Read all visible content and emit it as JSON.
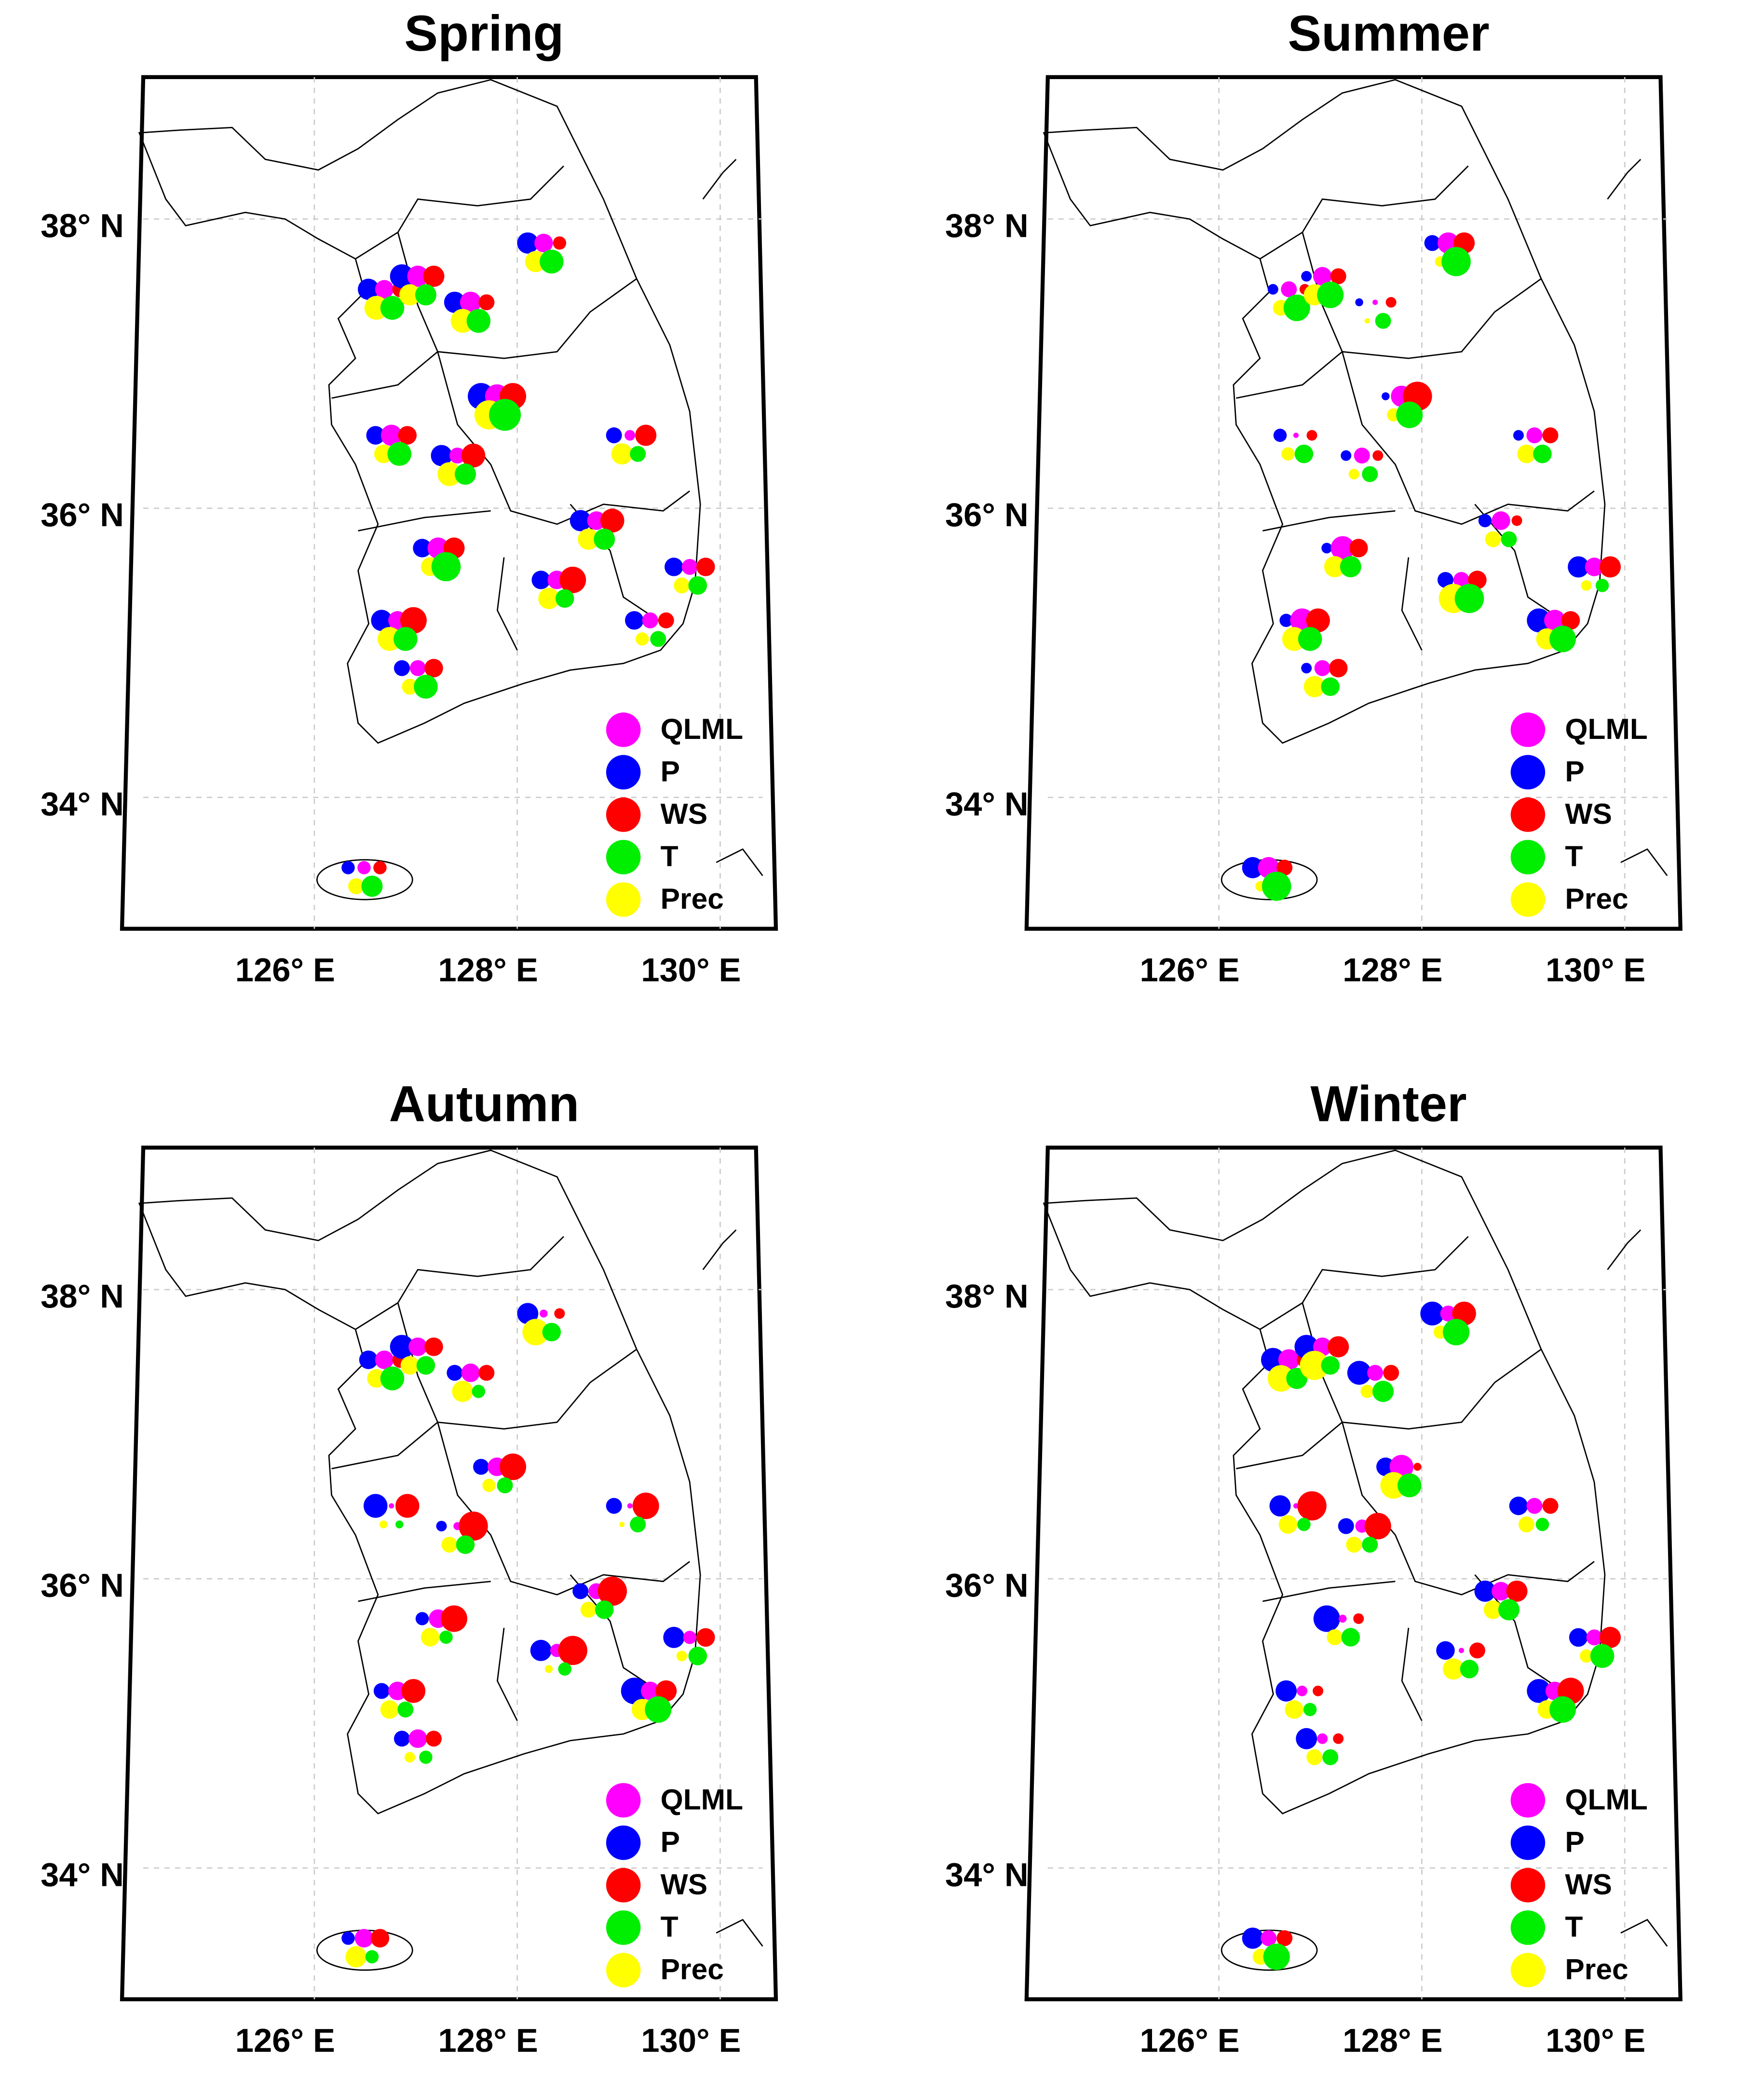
{
  "panels": [
    {
      "title": "Spring",
      "sizes": {
        "QLML": [
          7,
          8,
          8,
          7,
          9,
          8,
          6,
          4,
          7,
          6,
          7,
          8,
          7,
          6,
          6,
          5
        ],
        "P": [
          8,
          9,
          8,
          8,
          10,
          7,
          8,
          6,
          8,
          7,
          7,
          7,
          8,
          6,
          7,
          5
        ],
        "WS": [
          6,
          8,
          6,
          5,
          10,
          7,
          9,
          8,
          9,
          7,
          10,
          8,
          10,
          7,
          6,
          5
        ],
        "T": [
          9,
          8,
          9,
          9,
          12,
          9,
          8,
          6,
          8,
          7,
          7,
          11,
          9,
          9,
          6,
          8
        ],
        "Prec": [
          9,
          8,
          9,
          8,
          11,
          7,
          9,
          8,
          8,
          6,
          8,
          7,
          9,
          6,
          5,
          6
        ]
      }
    },
    {
      "title": "Summer",
      "sizes": {
        "QLML": [
          6,
          7,
          2,
          8,
          8,
          2,
          6,
          6,
          7,
          7,
          6,
          9,
          9,
          6,
          8,
          8
        ],
        "P": [
          4,
          4,
          3,
          6,
          3,
          5,
          4,
          4,
          5,
          8,
          6,
          4,
          5,
          4,
          9,
          8
        ],
        "WS": [
          4,
          6,
          4,
          8,
          11,
          4,
          4,
          6,
          4,
          8,
          7,
          7,
          9,
          7,
          7,
          6
        ],
        "T": [
          10,
          10,
          6,
          11,
          10,
          7,
          6,
          7,
          6,
          5,
          11,
          8,
          9,
          7,
          10,
          11
        ],
        "Prec": [
          6,
          8,
          2,
          4,
          5,
          5,
          4,
          7,
          6,
          4,
          11,
          8,
          9,
          8,
          8,
          4
        ]
      }
    },
    {
      "title": "Autumn",
      "sizes": {
        "QLML": [
          7,
          7,
          7,
          3,
          7,
          2,
          3,
          2,
          6,
          5,
          5,
          7,
          7,
          7,
          7,
          7
        ],
        "P": [
          7,
          9,
          6,
          8,
          6,
          9,
          4,
          6,
          6,
          8,
          8,
          5,
          6,
          6,
          10,
          5
        ],
        "WS": [
          6,
          7,
          6,
          4,
          10,
          9,
          11,
          10,
          11,
          7,
          11,
          10,
          9,
          6,
          8,
          7
        ],
        "T": [
          9,
          7,
          5,
          7,
          6,
          3,
          7,
          6,
          7,
          7,
          5,
          5,
          6,
          5,
          10,
          5
        ],
        "Prec": [
          7,
          7,
          8,
          10,
          5,
          3,
          6,
          2,
          6,
          4,
          3,
          7,
          7,
          4,
          8,
          8
        ]
      }
    },
    {
      "title": "Winter",
      "sizes": {
        "QLML": [
          8,
          7,
          6,
          6,
          9,
          2,
          5,
          6,
          7,
          6,
          2,
          3,
          4,
          4,
          7,
          6
        ],
        "P": [
          9,
          9,
          9,
          9,
          7,
          8,
          6,
          7,
          8,
          7,
          7,
          10,
          8,
          8,
          9,
          8
        ],
        "WS": [
          6,
          8,
          6,
          9,
          3,
          11,
          10,
          6,
          8,
          8,
          6,
          4,
          4,
          4,
          10,
          6
        ],
        "T": [
          8,
          7,
          8,
          10,
          9,
          5,
          6,
          5,
          8,
          9,
          7,
          7,
          5,
          6,
          10,
          10
        ],
        "Prec": [
          10,
          11,
          5,
          5,
          10,
          7,
          6,
          6,
          7,
          5,
          8,
          6,
          7,
          6,
          7,
          6
        ]
      }
    }
  ],
  "stations": [
    {
      "lon": 126.69,
      "lat": 37.45
    },
    {
      "lon": 127.02,
      "lat": 37.54
    },
    {
      "lon": 127.54,
      "lat": 37.36
    },
    {
      "lon": 128.26,
      "lat": 37.77
    },
    {
      "lon": 127.8,
      "lat": 36.71
    },
    {
      "lon": 126.76,
      "lat": 36.44
    },
    {
      "lon": 127.41,
      "lat": 36.3
    },
    {
      "lon": 129.11,
      "lat": 36.44
    },
    {
      "lon": 128.78,
      "lat": 35.85
    },
    {
      "lon": 129.7,
      "lat": 35.53
    },
    {
      "lon": 128.39,
      "lat": 35.44
    },
    {
      "lon": 127.22,
      "lat": 35.66
    },
    {
      "lon": 126.82,
      "lat": 35.16
    },
    {
      "lon": 127.02,
      "lat": 34.83
    },
    {
      "lon": 129.31,
      "lat": 35.16
    },
    {
      "lon": 126.49,
      "lat": 33.45
    }
  ],
  "legend": [
    {
      "name": "QLML",
      "color": "#ff00ff"
    },
    {
      "name": "P",
      "color": "#0000ff"
    },
    {
      "name": "WS",
      "color": "#ff0000"
    },
    {
      "name": "T",
      "color": "#00ee00"
    },
    {
      "name": "Prec",
      "color": "#ffff00"
    }
  ],
  "lat_labels": [
    {
      "value": 38,
      "label": "38° N"
    },
    {
      "value": 36,
      "label": "36° N"
    },
    {
      "value": 34,
      "label": "34° N"
    }
  ],
  "lon_labels": [
    {
      "value": 126,
      "label": "126° E"
    },
    {
      "value": 128,
      "label": "128° E"
    },
    {
      "value": 130,
      "label": "130° E"
    }
  ]
}
